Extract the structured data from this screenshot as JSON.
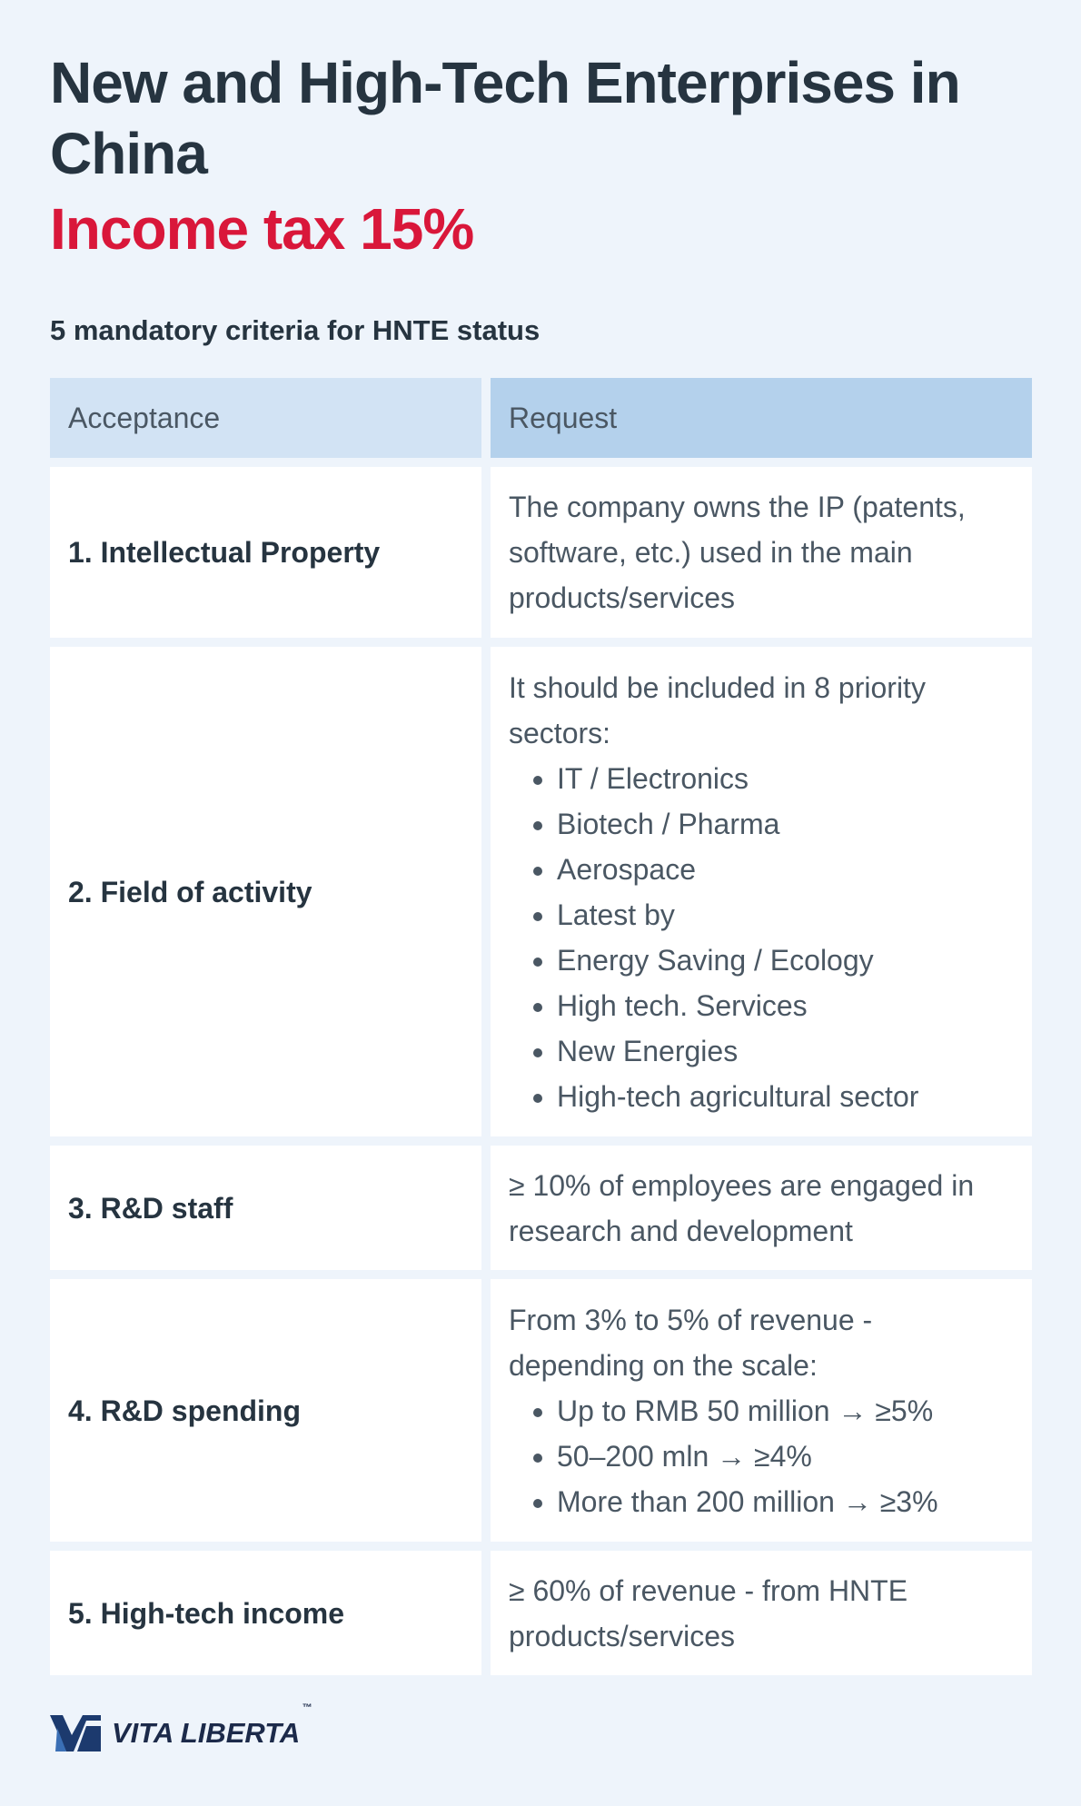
{
  "header": {
    "title": "New and High-Tech Enterprises in China",
    "highlight": "Income tax 15%"
  },
  "subtitle": "5 mandatory criteria for HNTE status",
  "table": {
    "columns": [
      "Acceptance",
      "Request"
    ],
    "rows": [
      {
        "criterion": "1. Intellectual Property",
        "text": "The company owns the IP (patents, software, etc.) used in the main products/services",
        "bullets": []
      },
      {
        "criterion": "2. Field of activity",
        "text": "It should be included in 8 priority sectors:",
        "bullets": [
          "IT / Electronics",
          "Biotech / Pharma",
          "Aerospace",
          "Latest by",
          "Energy Saving / Ecology",
          "High tech. Services",
          "New Energies",
          "High-tech agricultural sector"
        ]
      },
      {
        "criterion": "3. R&D staff",
        "text": "≥ 10% of employees are engaged in research and development",
        "bullets": []
      },
      {
        "criterion": "4. R&D spending",
        "text": "From 3% to 5% of revenue - depending on the scale:",
        "bullets": [
          "Up to RMB 50 million → ≥5%",
          "50–200 mln → ≥4%",
          "More than 200 million → ≥3%"
        ]
      },
      {
        "criterion": "5. High-tech income",
        "text": "≥ 60% of revenue - from HNTE products/services",
        "bullets": []
      }
    ]
  },
  "logo": {
    "text": "VITA LIBERTA",
    "mark": "™"
  }
}
